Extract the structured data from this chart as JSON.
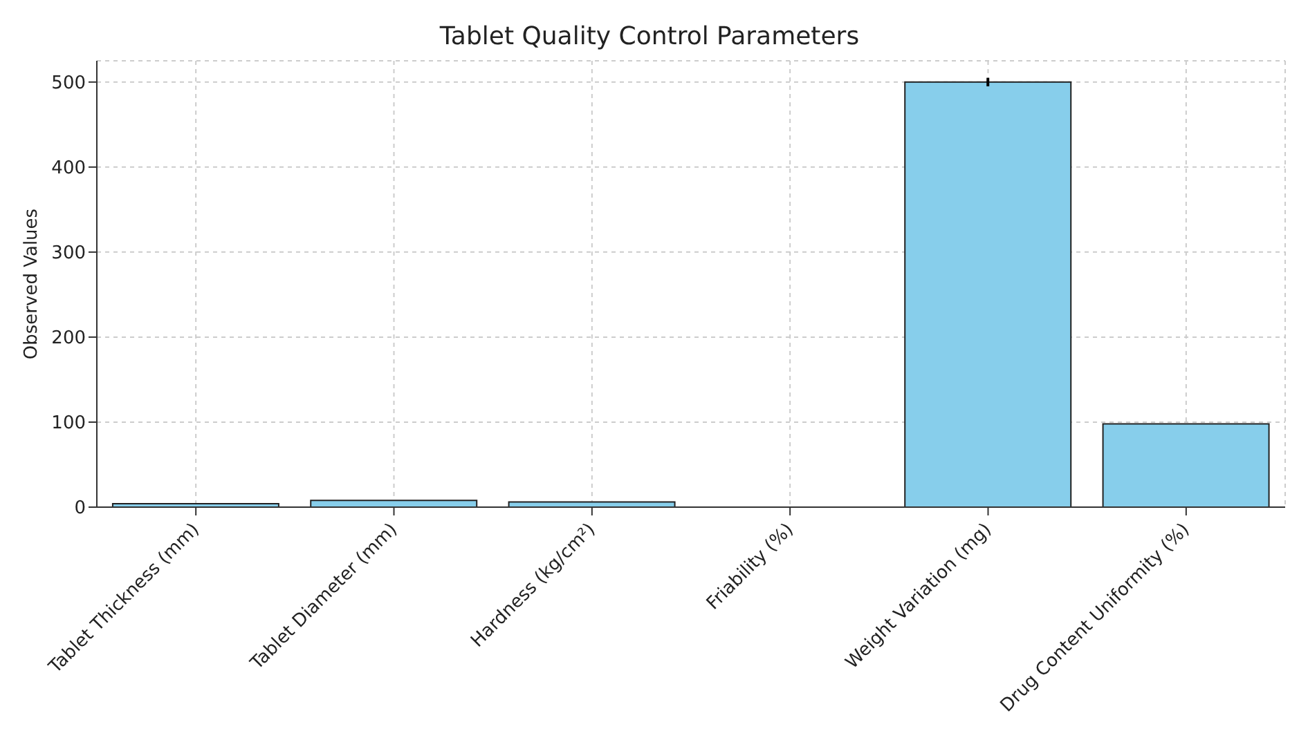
{
  "chart_data": {
    "type": "bar",
    "title": "Tablet Quality Control Parameters",
    "ylabel": "Observed Values",
    "categories": [
      "Tablet Thickness (mm)",
      "Tablet Diameter (mm)",
      "Hardness (kg/cm²)",
      "Friability (%)",
      "Weight Variation (mg)",
      "Drug Content Uniformity (%)"
    ],
    "values": [
      4,
      8,
      6,
      null,
      500,
      98
    ],
    "errors": [
      null,
      null,
      null,
      null,
      5,
      null
    ],
    "color": "#87ceeb",
    "ylim": [
      0,
      525
    ],
    "yticks": [
      0,
      100,
      200,
      300,
      400,
      500
    ],
    "grid": true
  }
}
